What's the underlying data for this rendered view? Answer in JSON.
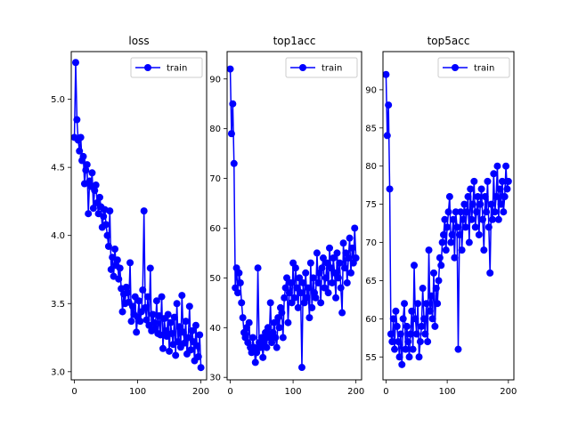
{
  "chart_data": [
    {
      "type": "line",
      "title": "loss",
      "xlabel": "",
      "ylabel": "",
      "xlim": [
        -5,
        209
      ],
      "ylim": [
        2.94,
        5.35
      ],
      "xticks": [
        0,
        100,
        200
      ],
      "yticks": [
        3.0,
        3.5,
        4.0,
        4.5,
        5.0
      ],
      "ytick_labels": [
        "3.0",
        "3.5",
        "4.0",
        "4.5",
        "5.0"
      ],
      "legend": {
        "position": "top-right",
        "entries": [
          "train"
        ]
      },
      "series": [
        {
          "name": "train",
          "color": "#0000ff",
          "marker": "circle",
          "x": [
            0,
            2,
            4,
            6,
            8,
            10,
            12,
            14,
            16,
            18,
            20,
            22,
            24,
            26,
            28,
            30,
            32,
            34,
            36,
            38,
            40,
            42,
            44,
            46,
            48,
            50,
            52,
            54,
            56,
            58,
            60,
            62,
            64,
            66,
            68,
            70,
            72,
            74,
            76,
            78,
            80,
            82,
            84,
            86,
            88,
            90,
            92,
            94,
            96,
            98,
            100,
            102,
            104,
            106,
            108,
            110,
            112,
            114,
            116,
            118,
            120,
            122,
            124,
            126,
            128,
            130,
            132,
            134,
            136,
            138,
            140,
            142,
            144,
            146,
            148,
            150,
            152,
            154,
            156,
            158,
            160,
            162,
            164,
            166,
            168,
            170,
            172,
            174,
            176,
            178,
            180,
            182,
            184,
            186,
            188,
            190,
            192,
            194,
            196,
            198,
            200
          ],
          "y": [
            4.72,
            5.27,
            4.85,
            4.7,
            4.62,
            4.72,
            4.55,
            4.58,
            4.38,
            4.48,
            4.52,
            4.16,
            4.4,
            4.36,
            4.46,
            4.2,
            4.33,
            4.37,
            4.24,
            4.16,
            4.28,
            4.21,
            4.06,
            4.14,
            4.19,
            4.08,
            4.0,
            3.92,
            4.18,
            3.75,
            3.84,
            3.7,
            3.9,
            3.78,
            3.82,
            3.68,
            3.76,
            3.61,
            3.44,
            3.57,
            3.5,
            3.62,
            3.58,
            3.51,
            3.8,
            3.37,
            3.48,
            3.42,
            3.55,
            3.29,
            3.4,
            3.52,
            3.37,
            3.44,
            3.6,
            4.18,
            3.47,
            3.38,
            3.55,
            3.34,
            3.76,
            3.3,
            3.42,
            3.36,
            3.32,
            3.52,
            3.28,
            3.41,
            3.27,
            3.55,
            3.17,
            3.39,
            3.3,
            3.26,
            3.42,
            3.15,
            3.36,
            3.28,
            3.2,
            3.4,
            3.12,
            3.5,
            3.22,
            3.33,
            3.18,
            3.56,
            3.29,
            3.21,
            3.37,
            3.13,
            3.25,
            3.48,
            3.16,
            3.3,
            3.22,
            3.08,
            3.34,
            3.19,
            3.11,
            3.27,
            3.03
          ]
        }
      ]
    },
    {
      "type": "line",
      "title": "top1acc",
      "xlabel": "",
      "ylabel": "",
      "xlim": [
        -5,
        209
      ],
      "ylim": [
        29.5,
        95.5
      ],
      "xticks": [
        0,
        100,
        200
      ],
      "yticks": [
        30,
        40,
        50,
        60,
        70,
        80,
        90
      ],
      "ytick_labels": [
        "30",
        "40",
        "50",
        "60",
        "70",
        "80",
        "90"
      ],
      "legend": {
        "position": "top-right",
        "entries": [
          "train"
        ]
      },
      "series": [
        {
          "name": "train",
          "color": "#0000ff",
          "marker": "circle",
          "x": [
            0,
            2,
            4,
            6,
            8,
            10,
            12,
            14,
            16,
            18,
            20,
            22,
            24,
            26,
            28,
            30,
            32,
            34,
            36,
            38,
            40,
            42,
            44,
            46,
            48,
            50,
            52,
            54,
            56,
            58,
            60,
            62,
            64,
            66,
            68,
            70,
            72,
            74,
            76,
            78,
            80,
            82,
            84,
            86,
            88,
            90,
            92,
            94,
            96,
            98,
            100,
            102,
            104,
            106,
            108,
            110,
            112,
            114,
            116,
            118,
            120,
            122,
            124,
            126,
            128,
            130,
            132,
            134,
            136,
            138,
            140,
            142,
            144,
            146,
            148,
            150,
            152,
            154,
            156,
            158,
            160,
            162,
            164,
            166,
            168,
            170,
            172,
            174,
            176,
            178,
            180,
            182,
            184,
            186,
            188,
            190,
            192,
            194,
            196,
            198,
            200
          ],
          "y": [
            92,
            79,
            85,
            73,
            48,
            52,
            47,
            51,
            49,
            45,
            42,
            39,
            38,
            40,
            37,
            41,
            36,
            35,
            38,
            36,
            33,
            35,
            52,
            37,
            36,
            38,
            34,
            37,
            39,
            36,
            40,
            38,
            45,
            37,
            39,
            41,
            38,
            36,
            42,
            40,
            44,
            43,
            38,
            46,
            48,
            50,
            41,
            47,
            49,
            45,
            53,
            46,
            52,
            48,
            44,
            50,
            47,
            32,
            49,
            45,
            51,
            46,
            48,
            42,
            53,
            44,
            50,
            47,
            46,
            55,
            49,
            51,
            45,
            52,
            54,
            48,
            50,
            53,
            47,
            56,
            52,
            49,
            54,
            51,
            46,
            55,
            50,
            53,
            48,
            43,
            57,
            52,
            55,
            49,
            54,
            58,
            51,
            56,
            53,
            60,
            54
          ]
        }
      ]
    },
    {
      "type": "line",
      "title": "top5acc",
      "xlabel": "",
      "ylabel": "",
      "xlim": [
        -5,
        209
      ],
      "ylim": [
        52.0,
        95.0
      ],
      "xticks": [
        0,
        100,
        200
      ],
      "yticks": [
        55,
        60,
        65,
        70,
        75,
        80,
        85,
        90
      ],
      "ytick_labels": [
        "55",
        "60",
        "65",
        "70",
        "75",
        "80",
        "85",
        "90"
      ],
      "legend": {
        "position": "top-right",
        "entries": [
          "train"
        ]
      },
      "series": [
        {
          "name": "train",
          "color": "#0000ff",
          "marker": "circle",
          "x": [
            0,
            2,
            4,
            6,
            8,
            10,
            12,
            14,
            16,
            18,
            20,
            22,
            24,
            26,
            28,
            30,
            32,
            34,
            36,
            38,
            40,
            42,
            44,
            46,
            48,
            50,
            52,
            54,
            56,
            58,
            60,
            62,
            64,
            66,
            68,
            70,
            72,
            74,
            76,
            78,
            80,
            82,
            84,
            86,
            88,
            90,
            92,
            94,
            96,
            98,
            100,
            102,
            104,
            106,
            108,
            110,
            112,
            114,
            116,
            118,
            120,
            122,
            124,
            126,
            128,
            130,
            132,
            134,
            136,
            138,
            140,
            142,
            144,
            146,
            148,
            150,
            152,
            154,
            156,
            158,
            160,
            162,
            164,
            166,
            168,
            170,
            172,
            174,
            176,
            178,
            180,
            182,
            184,
            186,
            188,
            190,
            192,
            194,
            196,
            198,
            200
          ],
          "y": [
            92,
            84,
            88,
            77,
            58,
            57,
            60,
            56,
            61,
            59,
            57,
            55,
            58,
            54,
            60,
            62,
            56,
            59,
            57,
            55,
            58,
            61,
            56,
            67,
            60,
            58,
            62,
            55,
            57,
            59,
            64,
            60,
            58,
            62,
            57,
            69,
            61,
            63,
            60,
            66,
            59,
            64,
            62,
            65,
            68,
            67,
            70,
            71,
            73,
            69,
            72,
            74,
            76,
            70,
            71,
            73,
            68,
            74,
            72,
            56,
            71,
            74,
            69,
            73,
            75,
            72,
            74,
            76,
            70,
            77,
            73,
            75,
            78,
            72,
            74,
            76,
            71,
            75,
            77,
            73,
            69,
            76,
            74,
            78,
            72,
            66,
            75,
            73,
            79,
            74,
            76,
            80,
            73,
            77,
            75,
            78,
            74,
            76,
            80,
            77,
            78
          ]
        }
      ]
    }
  ]
}
